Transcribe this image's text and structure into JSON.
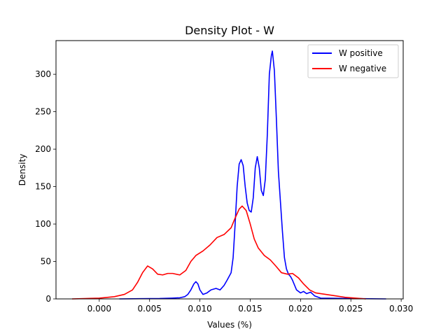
{
  "chart_data": {
    "type": "line",
    "title": "Density Plot - W",
    "xlabel": "Values (%)",
    "ylabel": "Density",
    "xlim": [
      -0.0043,
      0.0302
    ],
    "ylim": [
      0,
      345
    ],
    "xticks": [
      0.0,
      0.005,
      0.01,
      0.015,
      0.02,
      0.025,
      0.03
    ],
    "xtick_labels": [
      "0.000",
      "0.005",
      "0.010",
      "0.015",
      "0.020",
      "0.025",
      "0.030"
    ],
    "yticks": [
      0,
      50,
      100,
      150,
      200,
      250,
      300
    ],
    "ytick_labels": [
      "0",
      "50",
      "100",
      "150",
      "200",
      "250",
      "300"
    ],
    "grid": false,
    "legend_position": "upper right",
    "series": [
      {
        "name": "W positive",
        "color": "#0000ff",
        "points": [
          [
            0.002,
            0
          ],
          [
            0.004,
            0.3
          ],
          [
            0.006,
            0.5
          ],
          [
            0.0072,
            1
          ],
          [
            0.008,
            1.5
          ],
          [
            0.0085,
            3
          ],
          [
            0.0088,
            6
          ],
          [
            0.0091,
            12
          ],
          [
            0.0094,
            20
          ],
          [
            0.0096,
            23
          ],
          [
            0.0098,
            20
          ],
          [
            0.01,
            12
          ],
          [
            0.0103,
            6
          ],
          [
            0.0107,
            8
          ],
          [
            0.0111,
            12
          ],
          [
            0.0116,
            14
          ],
          [
            0.012,
            12
          ],
          [
            0.0124,
            18
          ],
          [
            0.0127,
            25
          ],
          [
            0.0131,
            35
          ],
          [
            0.0133,
            55
          ],
          [
            0.0135,
            100
          ],
          [
            0.0137,
            150
          ],
          [
            0.0139,
            180
          ],
          [
            0.0141,
            186
          ],
          [
            0.0143,
            178
          ],
          [
            0.0145,
            150
          ],
          [
            0.0147,
            128
          ],
          [
            0.0149,
            118
          ],
          [
            0.0151,
            116
          ],
          [
            0.0153,
            135
          ],
          [
            0.0155,
            175
          ],
          [
            0.0157,
            190
          ],
          [
            0.0159,
            175
          ],
          [
            0.0161,
            145
          ],
          [
            0.0163,
            138
          ],
          [
            0.0165,
            160
          ],
          [
            0.0167,
            220
          ],
          [
            0.0169,
            300
          ],
          [
            0.0171,
            325
          ],
          [
            0.0172,
            331
          ],
          [
            0.0174,
            305
          ],
          [
            0.0176,
            240
          ],
          [
            0.0178,
            170
          ],
          [
            0.018,
            130
          ],
          [
            0.0182,
            90
          ],
          [
            0.0184,
            55
          ],
          [
            0.0186,
            40
          ],
          [
            0.0188,
            33
          ],
          [
            0.019,
            30
          ],
          [
            0.0192,
            25
          ],
          [
            0.0196,
            12
          ],
          [
            0.02,
            8
          ],
          [
            0.0203,
            10
          ],
          [
            0.0206,
            7
          ],
          [
            0.021,
            9
          ],
          [
            0.0214,
            4
          ],
          [
            0.022,
            1
          ],
          [
            0.025,
            0.5
          ],
          [
            0.0285,
            0
          ]
        ]
      },
      {
        "name": "W negative",
        "color": "#ff0000",
        "points": [
          [
            -0.0027,
            0
          ],
          [
            0.0,
            1
          ],
          [
            0.0015,
            3
          ],
          [
            0.0025,
            6
          ],
          [
            0.0033,
            12
          ],
          [
            0.0038,
            22
          ],
          [
            0.0043,
            35
          ],
          [
            0.0048,
            44
          ],
          [
            0.0053,
            40
          ],
          [
            0.0058,
            33
          ],
          [
            0.0063,
            32
          ],
          [
            0.0068,
            34
          ],
          [
            0.0073,
            34
          ],
          [
            0.008,
            32
          ],
          [
            0.0086,
            38
          ],
          [
            0.0091,
            50
          ],
          [
            0.0096,
            58
          ],
          [
            0.0103,
            64
          ],
          [
            0.011,
            72
          ],
          [
            0.0117,
            82
          ],
          [
            0.0124,
            86
          ],
          [
            0.0131,
            95
          ],
          [
            0.0135,
            108
          ],
          [
            0.0139,
            120
          ],
          [
            0.0142,
            124
          ],
          [
            0.0146,
            118
          ],
          [
            0.015,
            100
          ],
          [
            0.0154,
            80
          ],
          [
            0.0158,
            68
          ],
          [
            0.0164,
            58
          ],
          [
            0.017,
            52
          ],
          [
            0.0176,
            43
          ],
          [
            0.0181,
            35
          ],
          [
            0.0187,
            33
          ],
          [
            0.0192,
            34
          ],
          [
            0.0198,
            28
          ],
          [
            0.0203,
            20
          ],
          [
            0.0209,
            12
          ],
          [
            0.0215,
            8
          ],
          [
            0.0225,
            6
          ],
          [
            0.0235,
            4
          ],
          [
            0.0245,
            2
          ],
          [
            0.0255,
            1
          ],
          [
            0.0265,
            0
          ]
        ]
      }
    ]
  }
}
